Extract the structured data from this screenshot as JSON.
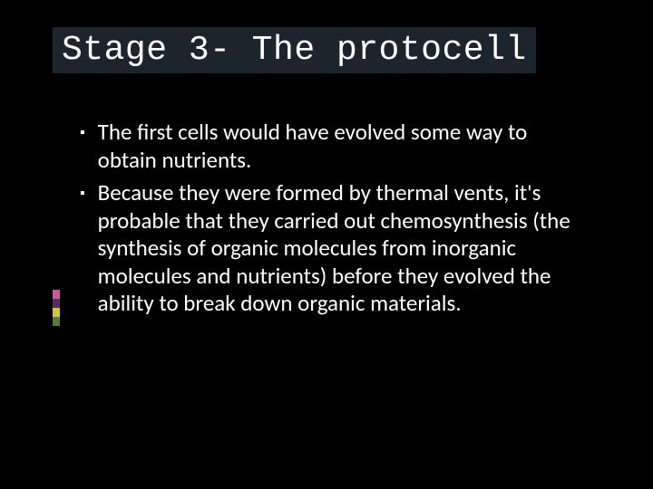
{
  "slide": {
    "title": "Stage 3- The protocell",
    "background_color": "#000000",
    "title_background": "#1c252b",
    "title_color": "#ffffff",
    "title_fontfamily": "Courier New",
    "title_fontsize": 38,
    "body_color": "#ffffff",
    "body_fontfamily": "Candara",
    "body_fontsize": 25,
    "bullet_marker": "▪",
    "bullets": [
      "The first cells would have evolved some way to obtain nutrients.",
      "Because they were formed by thermal vents, it's probable that they carried out chemosynthesis (the synthesis of organic molecules from inorganic molecules and nutrients) before they evolved the ability to break down organic materials."
    ],
    "accent_colors": [
      "#c95b9a",
      "#5a2f5e",
      "#d6c24a",
      "#5a7a3a"
    ]
  }
}
